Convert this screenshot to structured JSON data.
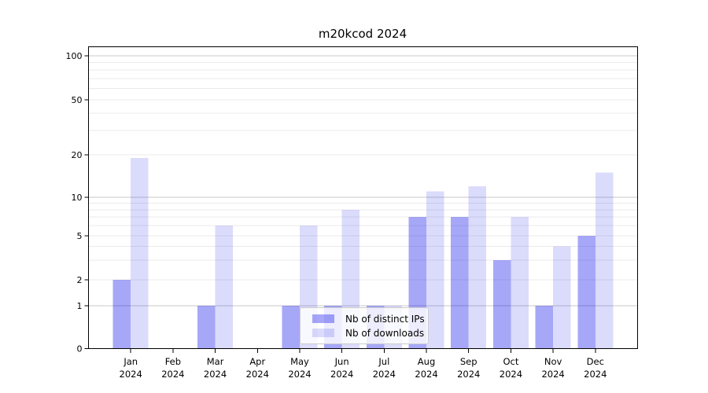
{
  "chart_data": {
    "type": "bar",
    "title": "m20kcod 2024",
    "categories": [
      "Jan",
      "Feb",
      "Mar",
      "Apr",
      "May",
      "Jun",
      "Jul",
      "Aug",
      "Sep",
      "Oct",
      "Nov",
      "Dec"
    ],
    "category_year": "2024",
    "series": [
      {
        "name": "Nb of distinct IPs",
        "color": "rgba(0,0,235,0.345)",
        "values": [
          2,
          0,
          1,
          0,
          1,
          1,
          1,
          7,
          7,
          3,
          1,
          5
        ]
      },
      {
        "name": "Nb of downloads",
        "color": "rgba(0,0,235,0.14)",
        "values": [
          19,
          0,
          6,
          0,
          6,
          8,
          1,
          11,
          12,
          7,
          4,
          15
        ]
      }
    ],
    "yscale": "symlog",
    "ylim": [
      0,
      120
    ],
    "y_tick_values": [
      100,
      50,
      20,
      10,
      5,
      2,
      1,
      0
    ],
    "y_tick_labels": [
      "100",
      "50",
      "20",
      "10",
      "5",
      "2",
      "1",
      "0"
    ],
    "y_major_gridlines": [
      1,
      10,
      100
    ],
    "y_minor_gridlines": [
      2,
      3,
      4,
      5,
      6,
      7,
      8,
      9,
      20,
      30,
      40,
      50,
      60,
      70,
      80,
      90
    ],
    "grid": true,
    "legend": {
      "position": "lower center",
      "entries": [
        "Nb of distinct IPs",
        "Nb of downloads"
      ]
    },
    "colors": {
      "axis": "#000000",
      "major_grid": "#c9c9c9",
      "minor_grid": "#ebebeb",
      "background": "#ffffff",
      "bar_dark_rendered": "#a8a8f6",
      "bar_light_rendered": "#dcdcf8"
    }
  }
}
